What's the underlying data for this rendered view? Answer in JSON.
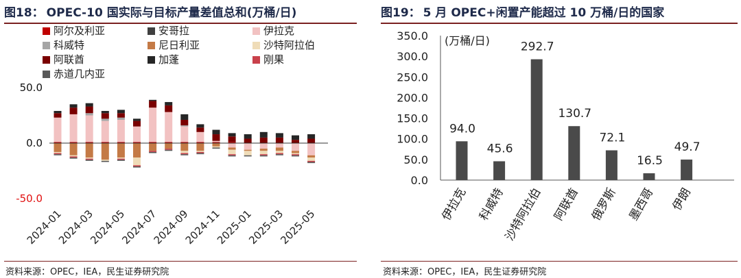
{
  "left": {
    "title_num": "图18：",
    "title_text": "OPEC-10 国实际与目标产量差值总和(万桶/日)",
    "source": "资料来源：OPEC，IEA，民生证券研究院"
  },
  "right": {
    "title_num": "图19：",
    "title_text": "5 月 OPEC+闲置产能超过 10 万桶/日的国家",
    "source": "资料来源：OPEC，IEA，民生证券研究院"
  },
  "colors": {
    "accent_red": "#e01010",
    "rule": "#7a1f1f",
    "title": "#1e2a4a",
    "bar_gray": "#4a4a4a"
  },
  "chart_data": [
    {
      "type": "bar",
      "stacked": true,
      "title": "OPEC-10 国实际与目标产量差值总和(万桶/日)",
      "ylim": [
        -50,
        50
      ],
      "yticks": [
        "50.0",
        "0.0",
        "-50.0"
      ],
      "ytick_values": [
        50,
        0,
        -50
      ],
      "ytick_colors": [
        "#111111",
        "#111111",
        "#e01010"
      ],
      "grid": false,
      "legend": "top",
      "categories": [
        "2024-01",
        "2024-02",
        "2024-03",
        "2024-04",
        "2024-05",
        "2024-06",
        "2024-07",
        "2024-08",
        "2024-09",
        "2024-10",
        "2024-11",
        "2024-12",
        "2025-01",
        "2025-02",
        "2025-03",
        "2025-04",
        "2025-05"
      ],
      "xtick_labels": [
        "2024-01",
        "2024-03",
        "2024-05",
        "2024-07",
        "2024-09",
        "2024-11",
        "2025-01",
        "2025-03",
        "2025-05"
      ],
      "xtick_indices": [
        0,
        2,
        4,
        6,
        8,
        10,
        12,
        14,
        16
      ],
      "series": [
        {
          "name": "阿尔及利亚",
          "color": "#c00000",
          "values": [
            1,
            1,
            1,
            1,
            1,
            1,
            1,
            1,
            1,
            1,
            1,
            1,
            0,
            0,
            0,
            0,
            0
          ]
        },
        {
          "name": "安哥拉",
          "color": "#404040",
          "values": [
            0,
            0,
            0,
            0,
            0,
            0,
            0,
            0,
            0,
            0,
            0,
            0,
            0,
            0,
            0,
            0,
            0
          ]
        },
        {
          "name": "伊拉克",
          "color": "#f2c2c2",
          "values": [
            22,
            25,
            24,
            19,
            20,
            14,
            31,
            27,
            14,
            9,
            1,
            -4,
            -6,
            -5,
            -4,
            -7,
            -11
          ]
        },
        {
          "name": "科威特",
          "color": "#a6a6a6",
          "values": [
            0,
            0,
            2,
            2,
            2,
            0,
            0,
            0,
            1,
            0,
            0,
            0,
            0,
            0,
            0,
            0,
            0
          ]
        },
        {
          "name": "尼日利亚",
          "color": "#c47a46",
          "values": [
            -8,
            -11,
            -13,
            -15,
            -13,
            -13,
            -7,
            -5,
            -7,
            -7,
            -3,
            -2,
            -1,
            -2,
            -3,
            -2,
            -2
          ]
        },
        {
          "name": "沙特阿拉伯",
          "color": "#efdcb8",
          "values": [
            -1,
            -1,
            -1,
            -1,
            -1,
            -7,
            0,
            0,
            -2,
            -1,
            -1,
            -4,
            -4,
            -3,
            -2,
            -1,
            -3
          ]
        },
        {
          "name": "阿联酋",
          "color": "#7a0000",
          "values": [
            4,
            6,
            6,
            5,
            4,
            5,
            6,
            6,
            5,
            4,
            6,
            5,
            4,
            5,
            5,
            3,
            4
          ]
        },
        {
          "name": "加蓬",
          "color": "#262626",
          "values": [
            2,
            3,
            3,
            2,
            3,
            2,
            1,
            3,
            5,
            3,
            4,
            3,
            4,
            5,
            4,
            4,
            4
          ]
        },
        {
          "name": "刚果",
          "color": "#c9414b",
          "values": [
            -1,
            -1,
            -1,
            0,
            -1,
            -1,
            -1,
            -1,
            -1,
            -1,
            0,
            -1,
            0,
            -1,
            -1,
            -1,
            -1
          ]
        },
        {
          "name": "赤道几内亚",
          "color": "#595959",
          "values": [
            -1,
            -1,
            -1,
            -1,
            -1,
            -1,
            -1,
            -1,
            -1,
            -1,
            -1,
            -1,
            -1,
            -1,
            -1,
            -1,
            -1
          ]
        }
      ]
    },
    {
      "type": "bar",
      "title": "5 月 OPEC+闲置产能超过 10 万桶/日的国家",
      "unit_label": "(万桶/日)",
      "ylim": [
        0,
        350
      ],
      "yticks": [
        "350.0",
        "300.0",
        "250.0",
        "200.0",
        "150.0",
        "100.0",
        "50.0",
        "0.0"
      ],
      "ytick_values": [
        350,
        300,
        250,
        200,
        150,
        100,
        50,
        0
      ],
      "grid": false,
      "categories": [
        "伊拉克",
        "科威特",
        "沙特阿拉伯",
        "阿联酋",
        "俄罗斯",
        "墨西哥",
        "伊朗"
      ],
      "values": [
        94.0,
        45.6,
        292.7,
        130.7,
        72.1,
        16.5,
        49.7
      ],
      "data_labels": [
        "94.0",
        "45.6",
        "292.7",
        "130.7",
        "72.1",
        "16.5",
        "49.7"
      ],
      "color": "#4a4a4a"
    }
  ]
}
